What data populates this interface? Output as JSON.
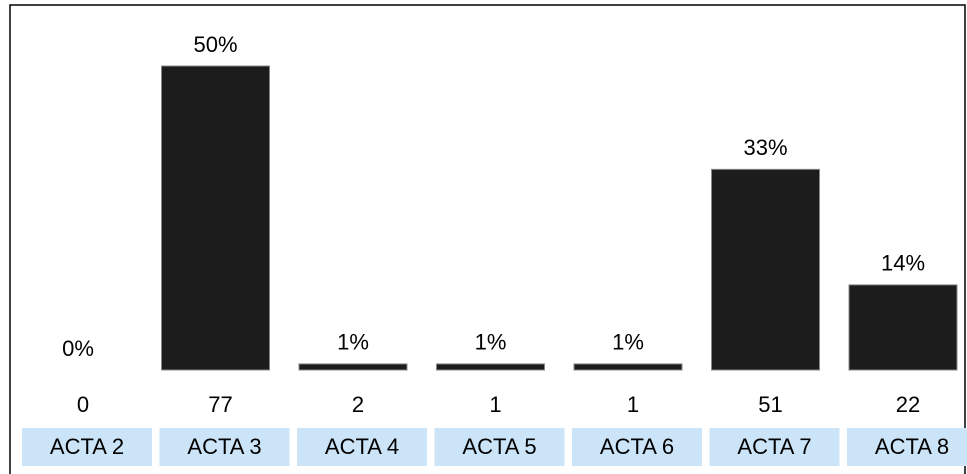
{
  "chart_data": {
    "type": "bar",
    "categories": [
      "ACTA 2",
      "ACTA 3",
      "ACTA 4",
      "ACTA 5",
      "ACTA 6",
      "ACTA 7",
      "ACTA 8"
    ],
    "values": [
      0,
      50,
      1,
      1,
      1,
      33,
      14
    ],
    "value_labels": [
      "0%",
      "50%",
      "1%",
      "1%",
      "1%",
      "33%",
      "14%"
    ],
    "counts": [
      0,
      77,
      2,
      1,
      1,
      51,
      22
    ],
    "color": "#1c1c1c"
  }
}
